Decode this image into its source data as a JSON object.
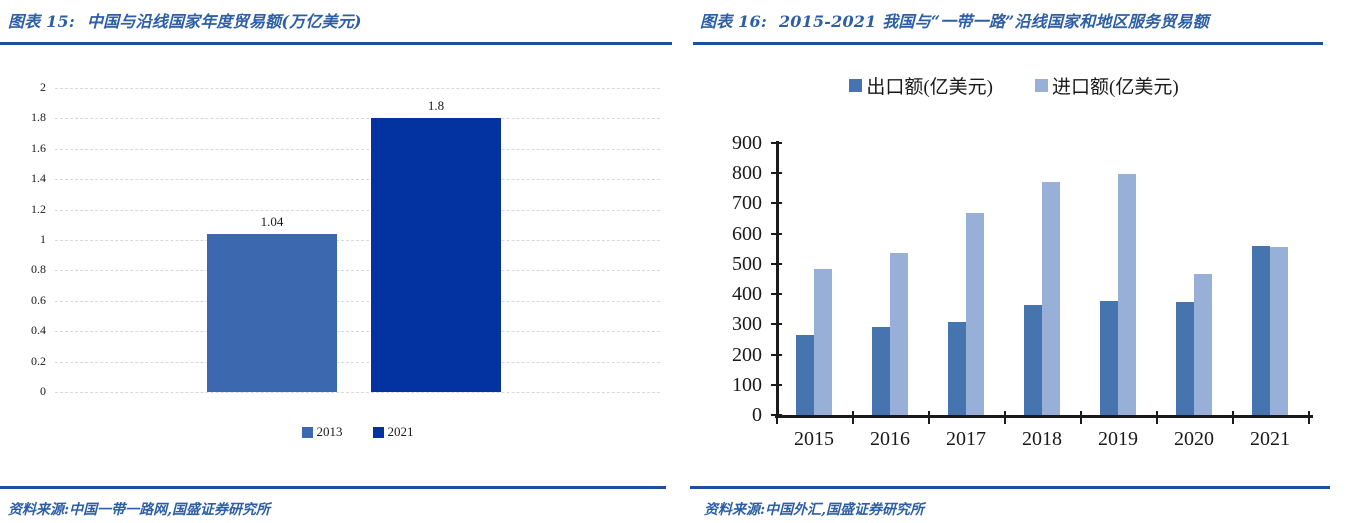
{
  "page": {
    "background": "#ffffff",
    "accent_color": "#1f4e9b",
    "title_color": "#2d5fa6"
  },
  "left_panel": {
    "figure_label": "图表 15:",
    "title": "中国与沿线国家年度贸易额(万亿美元)",
    "source": "资料来源:中国一带一路网,国盛证券研究所"
  },
  "right_panel": {
    "figure_label": "图表 16:",
    "title": "2015-2021 我国与“一带一路”沿线国家和地区服务贸易额",
    "source": "资料来源:中国外汇,国盛证券研究所"
  },
  "chart_data": [
    {
      "type": "bar",
      "title": "中国与沿线国家年度贸易额(万亿美元)",
      "categories": [
        "2013",
        "2021"
      ],
      "values": [
        1.04,
        1.8
      ],
      "data_labels": [
        "1.04",
        "1.8"
      ],
      "bar_colors": [
        "#3c68b0",
        "#0233a0"
      ],
      "ylim": [
        0,
        2
      ],
      "ytick_step": 0.2,
      "yticks": [
        "2",
        "1.8",
        "1.6",
        "1.4",
        "1.2",
        "1",
        "0.8",
        "0.6",
        "0.4",
        "0.2",
        "0"
      ],
      "grid": "horizontal-dashed",
      "legend_position": "bottom",
      "legend": [
        {
          "label": "2013",
          "color": "#3c68b0"
        },
        {
          "label": "2021",
          "color": "#0233a0"
        }
      ]
    },
    {
      "type": "bar",
      "title": "2015-2021 我国与“一带一路”沿线国家和地区服务贸易额",
      "categories": [
        "2015",
        "2016",
        "2017",
        "2018",
        "2019",
        "2020",
        "2021"
      ],
      "series": [
        {
          "name": "出口额(亿美元)",
          "color": "#4674ae",
          "values": [
            265,
            290,
            308,
            365,
            378,
            375,
            560
          ]
        },
        {
          "name": "进口额(亿美元)",
          "color": "#98b0d8",
          "values": [
            483,
            535,
            668,
            772,
            798,
            467,
            557
          ]
        }
      ],
      "ylim": [
        0,
        900
      ],
      "ytick_step": 100,
      "yticks": [
        "900",
        "800",
        "700",
        "600",
        "500",
        "400",
        "300",
        "200",
        "100",
        "0"
      ],
      "grid": "none",
      "legend_position": "top"
    }
  ]
}
